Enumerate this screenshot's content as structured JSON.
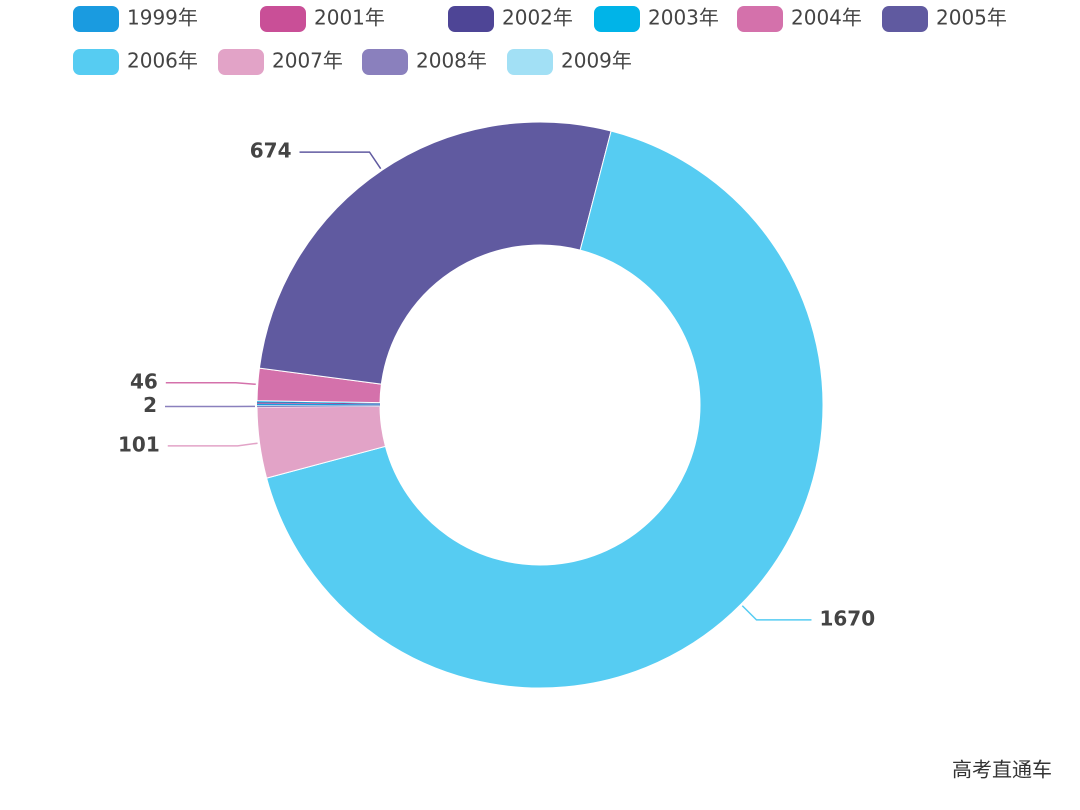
{
  "chart_data": {
    "type": "donut",
    "categories": [
      "1999年",
      "2001年",
      "2002年",
      "2003年",
      "2004年",
      "2005年",
      "2006年",
      "2007年",
      "2008年",
      "2009年"
    ],
    "values": [
      2,
      1,
      1,
      2,
      46,
      674,
      1670,
      101,
      2,
      1
    ],
    "colors": [
      "#1a9be0",
      "#c94f97",
      "#4e4596",
      "#00b4e8",
      "#d471ab",
      "#605aa0",
      "#56ccf2",
      "#e2a3c7",
      "#8a80bd",
      "#a2e0f5"
    ],
    "label_visible": [
      false,
      false,
      false,
      false,
      true,
      true,
      true,
      true,
      true,
      false
    ],
    "legend": "top-left",
    "watermark": "高考直通车"
  }
}
